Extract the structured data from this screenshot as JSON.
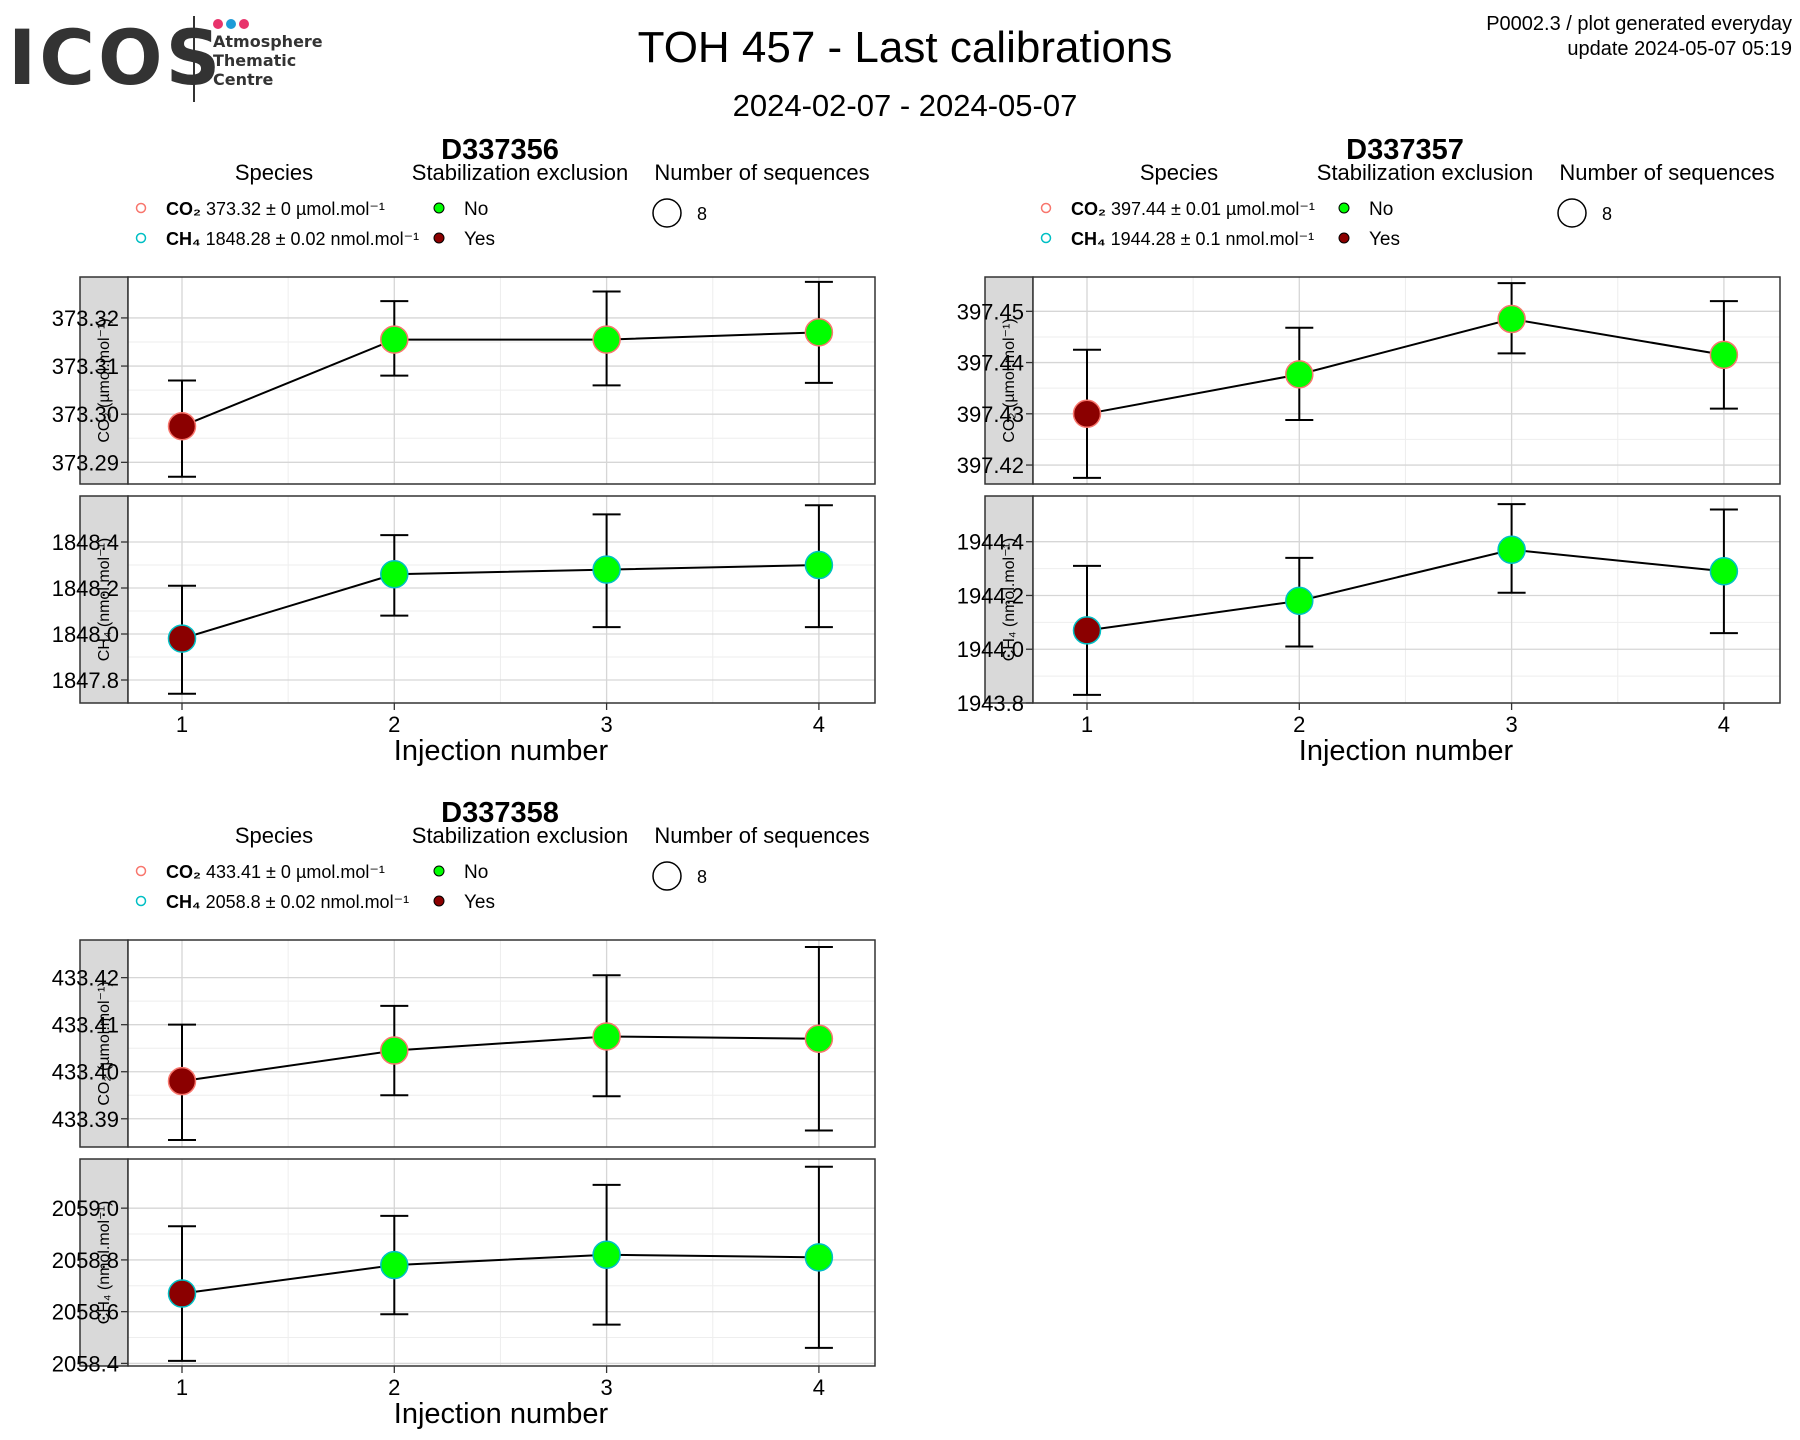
{
  "header": {
    "logo_text": "ICOS",
    "logo_sub": [
      "Atmosphere",
      "Thematic",
      "Centre"
    ],
    "title": "TOH 457 - Last calibrations",
    "date_range": "2024-02-07 - 2024-05-07",
    "meta_line1": "P0002.3 / plot generated everyday",
    "meta_line2": "update  2024-05-07 05:19"
  },
  "colors": {
    "excl_no": "#00ff00",
    "excl_yes": "#8b0000",
    "co2_species": "#f8766d",
    "ch4_species": "#00bfc4",
    "strip_bg": "#d9d9d9",
    "logo_dot1": "#e8336b",
    "logo_dot2": "#1e9bd7",
    "logo_dot3": "#e8336b"
  },
  "labels": {
    "species_legend_title": "Species",
    "stab_legend_title": "Stabilization exclusion",
    "nseq_legend_title": "Number of sequences",
    "stab_no": "No",
    "stab_yes": "Yes",
    "x_axis_title": "Injection number",
    "co2_strip": "CO₂ (µmol.mol⁻¹)",
    "ch4_strip": "CH₄ (nmol.mol⁻¹)"
  },
  "chart_data": [
    {
      "type": "scatter",
      "title": "D337356",
      "legend_species": [
        {
          "species": "CO₂",
          "value": "373.32 ± 0 µmol.mol⁻¹"
        },
        {
          "species": "CH₄",
          "value": "1848.28 ± 0.02 nmol.mol⁻¹"
        }
      ],
      "n_sequences": "8",
      "x": [
        1,
        2,
        3,
        4
      ],
      "panels": [
        {
          "species": "CO2",
          "y": [
            373.2975,
            373.3155,
            373.3155,
            373.317
          ],
          "err_low": [
            373.287,
            373.308,
            373.306,
            373.3065
          ],
          "err_high": [
            373.307,
            373.3235,
            373.3255,
            373.3275
          ],
          "excluded": [
            true,
            false,
            false,
            false
          ],
          "ylim": [
            373.2855,
            373.3285
          ],
          "yticks": [
            373.29,
            373.3,
            373.31,
            373.32
          ]
        },
        {
          "species": "CH4",
          "y": [
            1847.98,
            1848.26,
            1848.28,
            1848.3
          ],
          "err_low": [
            1847.74,
            1848.08,
            1848.03,
            1848.03
          ],
          "err_high": [
            1848.21,
            1848.43,
            1848.52,
            1848.56
          ],
          "excluded": [
            true,
            false,
            false,
            false
          ],
          "ylim": [
            1847.7,
            1848.6
          ],
          "yticks": [
            1847.8,
            1848.0,
            1848.2,
            1848.4
          ]
        }
      ]
    },
    {
      "type": "scatter",
      "title": "D337357",
      "legend_species": [
        {
          "species": "CO₂",
          "value": "397.44 ± 0.01 µmol.mol⁻¹"
        },
        {
          "species": "CH₄",
          "value": "1944.28 ± 0.1 nmol.mol⁻¹"
        }
      ],
      "n_sequences": "8",
      "x": [
        1,
        2,
        3,
        4
      ],
      "panels": [
        {
          "species": "CO2",
          "y": [
            397.43,
            397.4377,
            397.4485,
            397.4415
          ],
          "err_low": [
            397.4175,
            397.4288,
            397.4418,
            397.431
          ],
          "err_high": [
            397.4425,
            397.4468,
            397.4555,
            397.452
          ],
          "excluded": [
            true,
            false,
            false,
            false
          ],
          "ylim": [
            397.4163,
            397.4567
          ],
          "yticks": [
            397.42,
            397.43,
            397.44,
            397.45
          ]
        },
        {
          "species": "CH4",
          "y": [
            1944.07,
            1944.18,
            1944.37,
            1944.29
          ],
          "err_low": [
            1943.83,
            1944.01,
            1944.21,
            1944.06
          ],
          "err_high": [
            1944.31,
            1944.34,
            1944.54,
            1944.52
          ],
          "excluded": [
            true,
            false,
            false,
            false
          ],
          "ylim": [
            1943.8,
            1944.57
          ],
          "yticks": [
            1943.8,
            1944.0,
            1944.2,
            1944.4
          ]
        }
      ]
    },
    {
      "type": "scatter",
      "title": "D337358",
      "legend_species": [
        {
          "species": "CO₂",
          "value": "433.41 ± 0 µmol.mol⁻¹"
        },
        {
          "species": "CH₄",
          "value": "2058.8 ± 0.02 nmol.mol⁻¹"
        }
      ],
      "n_sequences": "8",
      "x": [
        1,
        2,
        3,
        4
      ],
      "panels": [
        {
          "species": "CO2",
          "y": [
            433.398,
            433.4045,
            433.4075,
            433.407
          ],
          "err_low": [
            433.3855,
            433.395,
            433.3948,
            433.3875
          ],
          "err_high": [
            433.41,
            433.414,
            433.4205,
            433.4265
          ],
          "excluded": [
            true,
            false,
            false,
            false
          ],
          "ylim": [
            433.384,
            433.428
          ],
          "yticks": [
            433.39,
            433.4,
            433.41,
            433.42
          ]
        },
        {
          "species": "CH4",
          "y": [
            2058.67,
            2058.78,
            2058.82,
            2058.81
          ],
          "err_low": [
            2058.41,
            2058.59,
            2058.55,
            2058.46
          ],
          "err_high": [
            2058.93,
            2058.97,
            2059.09,
            2059.16
          ],
          "excluded": [
            true,
            false,
            false,
            false
          ],
          "ylim": [
            2058.39,
            2059.19
          ],
          "yticks": [
            2058.4,
            2058.6,
            2058.8,
            2059.0
          ]
        }
      ]
    }
  ]
}
